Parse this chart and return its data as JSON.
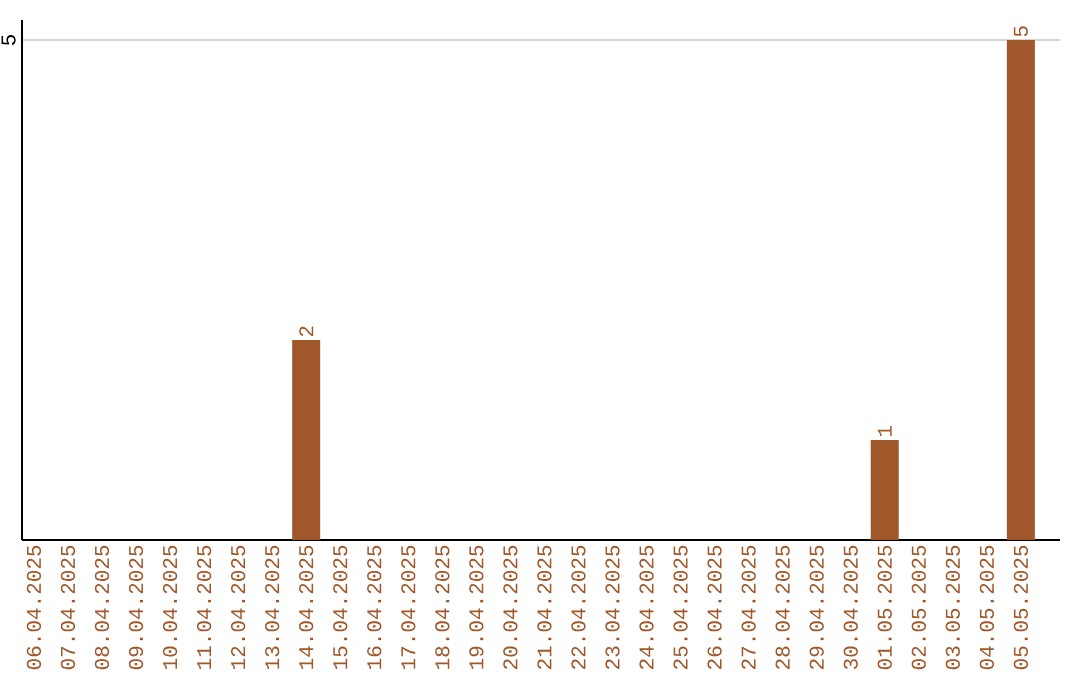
{
  "chart_data": {
    "type": "bar",
    "categories": [
      "06.04.2025",
      "07.04.2025",
      "08.04.2025",
      "09.04.2025",
      "10.04.2025",
      "11.04.2025",
      "12.04.2025",
      "13.04.2025",
      "14.04.2025",
      "15.04.2025",
      "16.04.2025",
      "17.04.2025",
      "18.04.2025",
      "19.04.2025",
      "20.04.2025",
      "21.04.2025",
      "22.04.2025",
      "23.04.2025",
      "24.04.2025",
      "25.04.2025",
      "26.04.2025",
      "27.04.2025",
      "28.04.2025",
      "29.04.2025",
      "30.04.2025",
      "01.05.2025",
      "02.05.2025",
      "03.05.2025",
      "04.05.2025",
      "05.05.2025"
    ],
    "values": [
      0,
      0,
      0,
      0,
      0,
      0,
      0,
      0,
      2,
      0,
      0,
      0,
      0,
      0,
      0,
      0,
      0,
      0,
      0,
      0,
      0,
      0,
      0,
      0,
      0,
      1,
      0,
      0,
      0,
      5
    ],
    "value_labels": [
      null,
      null,
      null,
      null,
      null,
      null,
      null,
      null,
      "2",
      null,
      null,
      null,
      null,
      null,
      null,
      null,
      null,
      null,
      null,
      null,
      null,
      null,
      null,
      null,
      null,
      "1",
      null,
      null,
      null,
      "5"
    ],
    "color": "#a0582a",
    "ylim": [
      0,
      5.2
    ],
    "yticks": [
      5
    ],
    "grid": "y"
  }
}
